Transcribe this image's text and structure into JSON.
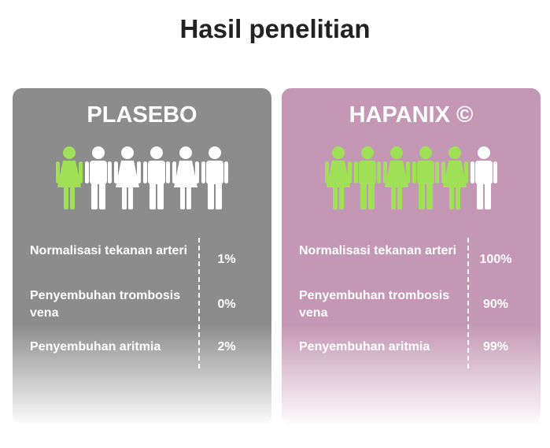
{
  "title": "Hasil penelitian",
  "cards": [
    {
      "title": "PLASEBO",
      "rows": [
        {
          "label": "Normalisasi tekanan arteri",
          "value": "1%"
        },
        {
          "label": "Penyembuhan trombosis vena",
          "value": "0%"
        },
        {
          "label": "Penyembuhan aritmia",
          "value": "2%"
        }
      ]
    },
    {
      "title": "HAPANIX ©",
      "rows": [
        {
          "label": "Normalisasi tekanan arteri",
          "value": "100%"
        },
        {
          "label": "Penyembuhan trombosis vena",
          "value": "90%"
        },
        {
          "label": "Penyembuhan aritmia",
          "value": "99%"
        }
      ]
    }
  ]
}
